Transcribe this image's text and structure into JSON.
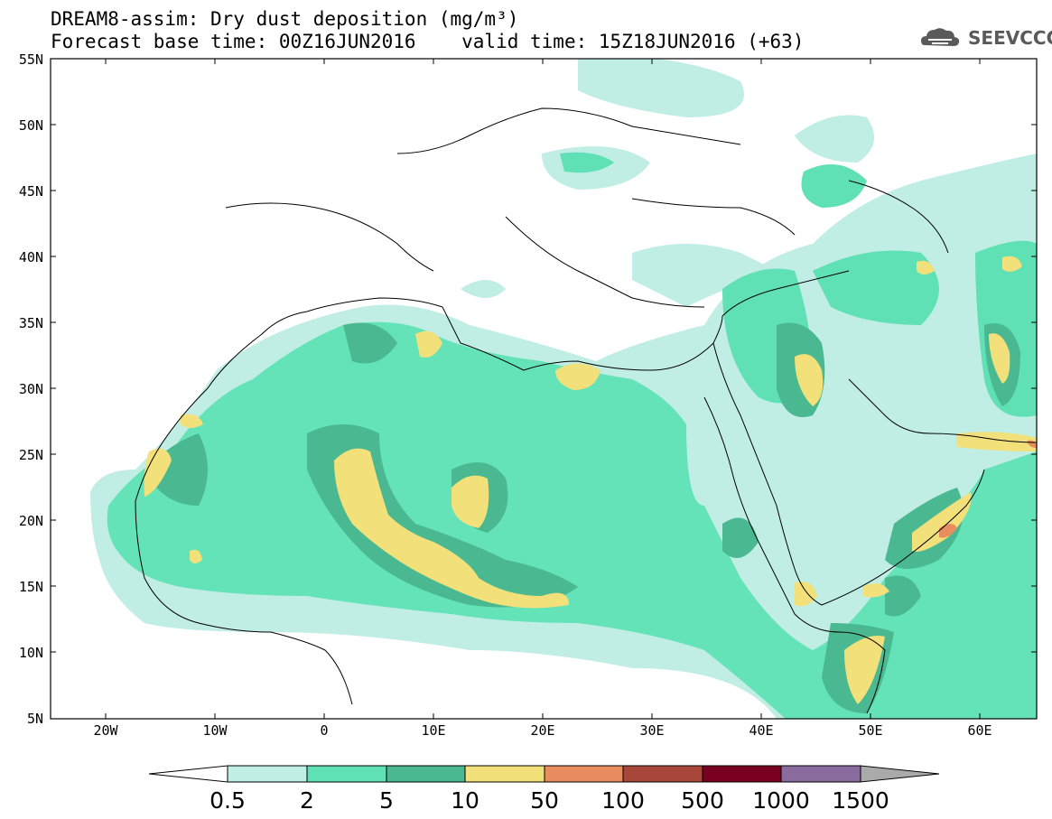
{
  "header": {
    "title_line1": "DREAM8-assim: Dry dust deposition (mg/m³)",
    "title_line2": "Forecast base time: 00Z16JUN2016    valid time: 15Z18JUN2016 (+63)",
    "logo_text": "SEEVCCC",
    "logo_icon": "cloud-logo-icon"
  },
  "map": {
    "lat_labels": [
      "55N",
      "50N",
      "45N",
      "40N",
      "35N",
      "30N",
      "25N",
      "20N",
      "15N",
      "10N",
      "5N"
    ],
    "lon_labels": [
      "20W",
      "10W",
      "0",
      "10E",
      "20E",
      "30E",
      "40E",
      "50E",
      "60E"
    ],
    "extent": {
      "lon_min": -25,
      "lon_max": 65,
      "lat_min": 5,
      "lat_max": 55
    }
  },
  "legend": {
    "labels": [
      "0.5",
      "2",
      "5",
      "10",
      "50",
      "100",
      "500",
      "1000",
      "1500"
    ],
    "colors": [
      "#c0eee5",
      "#5fe0b5",
      "#4ab891",
      "#f2e07a",
      "#e88d60",
      "#a9463a",
      "#7a0020",
      "#8a6b9e",
      "#aaaaaa"
    ]
  }
}
